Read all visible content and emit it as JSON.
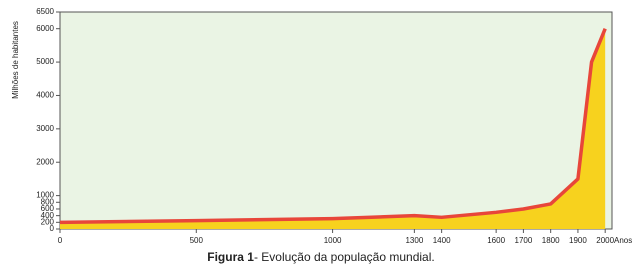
{
  "chart_data": {
    "type": "area",
    "y_label": "Milhões de habitantes",
    "x_label": "Anos",
    "caption_label": "Figura 1",
    "caption_text": "- Evolução da população mundial.",
    "x": [
      0,
      500,
      1000,
      1300,
      1400,
      1600,
      1700,
      1800,
      1900,
      1950,
      2000
    ],
    "values": [
      200,
      250,
      310,
      400,
      350,
      500,
      600,
      750,
      1500,
      5000,
      6000
    ],
    "line_color": "#e8463a",
    "fill_color": "#f7d21e",
    "background_color": "#eaf4e4",
    "xlim": [
      0,
      2025
    ],
    "ylim": [
      0,
      6500
    ],
    "xticks": [
      0,
      500,
      1000,
      1300,
      1400,
      1600,
      1700,
      1800,
      1900,
      2000
    ],
    "yticks": [
      0,
      200,
      400,
      600,
      800,
      1000,
      2000,
      3000,
      4000,
      5000,
      6000,
      6500
    ]
  }
}
